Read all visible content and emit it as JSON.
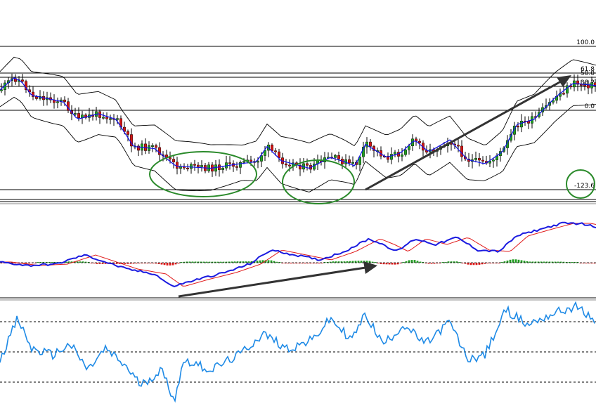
{
  "chart_data": [
    {
      "panel": "price",
      "type": "candlestick",
      "series": [
        {
          "kind": "candles",
          "colors": {
            "up": "#22a022",
            "down": "#d01515"
          }
        },
        {
          "kind": "bollinger-bands",
          "color": "#000000"
        },
        {
          "kind": "moving-average",
          "color": "#1010ee"
        }
      ],
      "fibonacci_levels": [
        {
          "label": "100.0",
          "value": 100.0
        },
        {
          "label": "61.8",
          "value": 61.8
        },
        {
          "label": "50.0",
          "value": 50.0
        },
        {
          "label": "38.2",
          "value": 38.2
        },
        {
          "label": "0.0",
          "value": 0.0
        },
        {
          "label": "-123.6",
          "value": -123.6
        }
      ],
      "price_profile": [
        [
          0,
          0.82
        ],
        [
          20,
          0.93
        ],
        [
          30,
          0.9
        ],
        [
          45,
          0.77
        ],
        [
          90,
          0.71
        ],
        [
          110,
          0.55
        ],
        [
          140,
          0.6
        ],
        [
          165,
          0.55
        ],
        [
          190,
          0.3
        ],
        [
          220,
          0.28
        ],
        [
          250,
          0.12
        ],
        [
          300,
          0.1
        ],
        [
          340,
          0.14
        ],
        [
          365,
          0.16
        ],
        [
          380,
          0.3
        ],
        [
          400,
          0.17
        ],
        [
          440,
          0.1
        ],
        [
          470,
          0.2
        ],
        [
          490,
          0.16
        ],
        [
          505,
          0.12
        ],
        [
          520,
          0.32
        ],
        [
          550,
          0.2
        ],
        [
          570,
          0.24
        ],
        [
          590,
          0.36
        ],
        [
          610,
          0.25
        ],
        [
          640,
          0.36
        ],
        [
          665,
          0.18
        ],
        [
          690,
          0.14
        ],
        [
          715,
          0.25
        ],
        [
          735,
          0.5
        ],
        [
          760,
          0.55
        ],
        [
          790,
          0.75
        ],
        [
          815,
          0.88
        ],
        [
          848,
          0.86
        ]
      ],
      "annotations": [
        {
          "kind": "ellipse",
          "label": ""
        },
        {
          "kind": "ellipse",
          "label": ""
        },
        {
          "kind": "circle",
          "label": ""
        },
        {
          "kind": "arrow",
          "direction": "up-right"
        }
      ]
    },
    {
      "panel": "macd",
      "type": "line+histogram",
      "series": [
        {
          "kind": "macd-line",
          "color": "#1a1ae0"
        },
        {
          "kind": "signal-line",
          "color": "#e01a1a"
        },
        {
          "kind": "histogram",
          "colors": {
            "positive": "#1f9a1f",
            "negative": "#e01a1a"
          }
        }
      ],
      "macd_profile": [
        [
          0,
          0.45
        ],
        [
          40,
          0.4
        ],
        [
          80,
          0.42
        ],
        [
          120,
          0.55
        ],
        [
          150,
          0.45
        ],
        [
          180,
          0.35
        ],
        [
          220,
          0.28
        ],
        [
          245,
          0.1
        ],
        [
          280,
          0.2
        ],
        [
          320,
          0.3
        ],
        [
          355,
          0.42
        ],
        [
          385,
          0.62
        ],
        [
          420,
          0.55
        ],
        [
          455,
          0.48
        ],
        [
          490,
          0.6
        ],
        [
          525,
          0.78
        ],
        [
          545,
          0.7
        ],
        [
          565,
          0.6
        ],
        [
          590,
          0.78
        ],
        [
          620,
          0.7
        ],
        [
          650,
          0.8
        ],
        [
          680,
          0.62
        ],
        [
          710,
          0.6
        ],
        [
          735,
          0.82
        ],
        [
          770,
          0.92
        ],
        [
          800,
          1.0
        ],
        [
          825,
          1.0
        ],
        [
          848,
          0.95
        ]
      ],
      "annotations": [
        {
          "kind": "arrow",
          "direction": "up-right"
        }
      ]
    },
    {
      "panel": "oscillator",
      "type": "line",
      "series": [
        {
          "kind": "oscillator-line",
          "color": "#1e8ae6"
        }
      ],
      "reference_levels": [
        70,
        50,
        30
      ],
      "osc_profile": [
        [
          0,
          45
        ],
        [
          25,
          72
        ],
        [
          45,
          52
        ],
        [
          75,
          48
        ],
        [
          100,
          55
        ],
        [
          125,
          38
        ],
        [
          150,
          52
        ],
        [
          180,
          40
        ],
        [
          200,
          28
        ],
        [
          230,
          38
        ],
        [
          248,
          18
        ],
        [
          262,
          45
        ],
        [
          300,
          38
        ],
        [
          340,
          48
        ],
        [
          375,
          62
        ],
        [
          410,
          52
        ],
        [
          445,
          58
        ],
        [
          470,
          72
        ],
        [
          500,
          58
        ],
        [
          520,
          75
        ],
        [
          545,
          55
        ],
        [
          575,
          68
        ],
        [
          605,
          55
        ],
        [
          640,
          70
        ],
        [
          665,
          45
        ],
        [
          690,
          48
        ],
        [
          720,
          78
        ],
        [
          750,
          68
        ],
        [
          790,
          76
        ],
        [
          820,
          80
        ],
        [
          848,
          70
        ]
      ]
    }
  ]
}
